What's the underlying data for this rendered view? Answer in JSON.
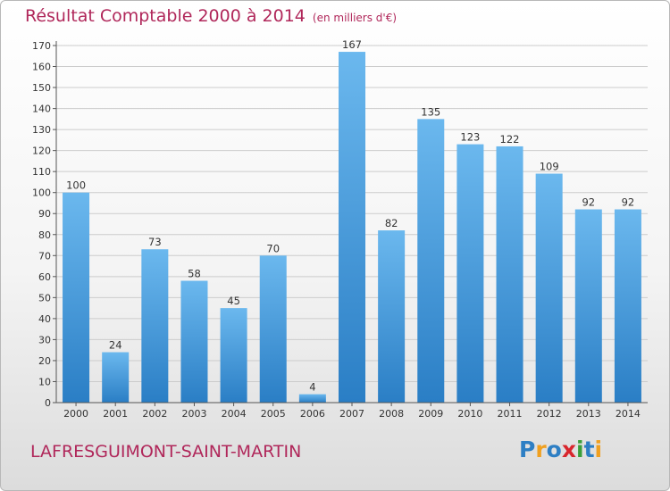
{
  "header": {
    "title": "Résultat Comptable 2000 à 2014",
    "subtitle": "(en milliers d'€)"
  },
  "footer": {
    "commune": "LAFRESGUIMONT-SAINT-MARTIN",
    "logo_letters": [
      "P",
      "r",
      "o",
      "x",
      "i",
      "t",
      "i"
    ],
    "logo_colors": [
      "#2e7fc4",
      "#f0a020",
      "#2e7fc4",
      "#d8262d",
      "#3a9f3a",
      "#2e7fc4",
      "#f0a020"
    ]
  },
  "chart_data": {
    "type": "bar",
    "title": "Résultat Comptable 2000 à 2014",
    "subtitle": "(en milliers d'€)",
    "categories": [
      "2000",
      "2001",
      "2002",
      "2003",
      "2004",
      "2005",
      "2006",
      "2007",
      "2008",
      "2009",
      "2010",
      "2011",
      "2012",
      "2013",
      "2014"
    ],
    "values": [
      100,
      24,
      73,
      58,
      45,
      70,
      4,
      167,
      82,
      135,
      123,
      122,
      109,
      92,
      92
    ],
    "value_labels": [
      "100",
      "24",
      "73",
      "58",
      "45",
      "70",
      "4",
      "167",
      "82",
      "135",
      "123",
      "122",
      "109",
      "92",
      "92"
    ],
    "yticks": [
      0,
      10,
      20,
      30,
      40,
      50,
      60,
      70,
      80,
      90,
      100,
      110,
      120,
      130,
      140,
      150,
      160,
      170
    ],
    "ylim": [
      0,
      170
    ],
    "xlabel": "",
    "ylabel": "",
    "grid": true,
    "colors": {
      "bar_light": "#6bb8ee",
      "bar_dark": "#2a7ec5",
      "grid": "#cccccc",
      "axis": "#555555",
      "text": "#333333"
    }
  }
}
